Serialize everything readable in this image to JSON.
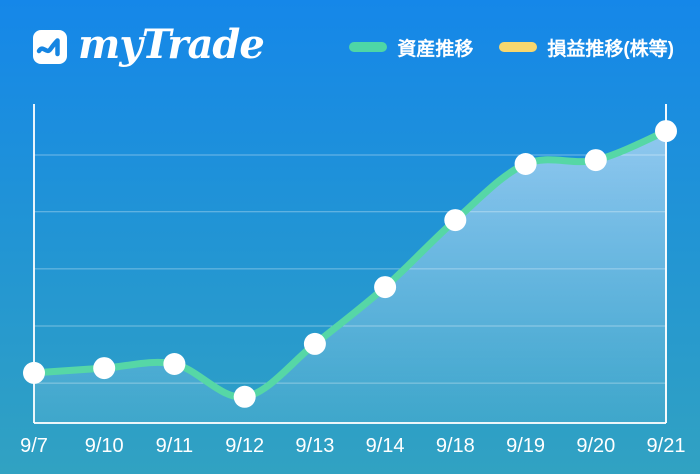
{
  "header": {
    "logo": {
      "text": "myTrade",
      "icon": "mytrade-wave-icon"
    },
    "legend": [
      {
        "label": "資産推移",
        "color": "#4ed6a6"
      },
      {
        "label": "損益推移(株等)",
        "color": "#f8d76e"
      }
    ]
  },
  "chart_data": {
    "type": "line",
    "title": "",
    "xlabel": "",
    "ylabel": "",
    "categories": [
      "9/7",
      "9/10",
      "9/11",
      "9/12",
      "9/13",
      "9/14",
      "9/18",
      "9/19",
      "9/20",
      "9/21"
    ],
    "series": [
      {
        "name": "資産推移",
        "color": "#56d7a6",
        "marker": "white-circle",
        "values": [
          15.7,
          17.2,
          18.5,
          8.2,
          24.8,
          42.6,
          63.6,
          81.2,
          82.4,
          91.5
        ],
        "plotted": true
      },
      {
        "name": "損益推移(株等)",
        "color": "#f8d76e",
        "values": [],
        "plotted": false
      }
    ],
    "ylim": [
      0,
      100
    ],
    "y_tick_labels_visible": false,
    "gridline_values": [
      12.5,
      30.4,
      48.3,
      66.2,
      84.0
    ],
    "grid": true,
    "area_fill": "white-fade-gradient",
    "marker_line_at_last_point": true,
    "legend_position": "top-right",
    "axis_color": "#ffffff",
    "label_color": "#ffffff"
  }
}
